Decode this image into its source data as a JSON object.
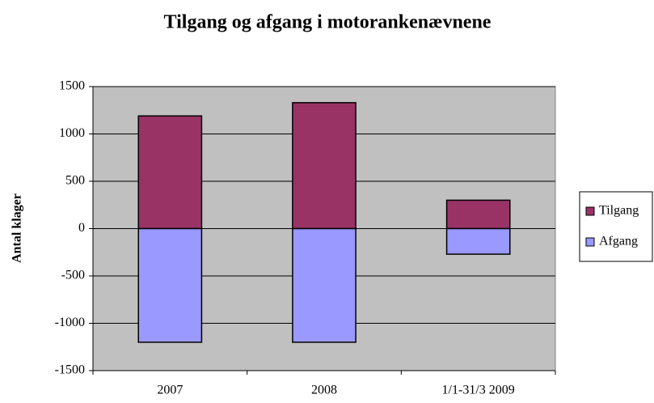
{
  "chart_data": {
    "type": "bar",
    "stacked": true,
    "title": "Tilgang og afgang i motorankenævnene",
    "y_label": "Antal klager",
    "categories": [
      "2007",
      "2008",
      "1/1-31/3 2009"
    ],
    "series": [
      {
        "name": "Tilgang",
        "color": "#993366",
        "values": [
          1190,
          1330,
          300
        ]
      },
      {
        "name": "Afgang",
        "color": "#9999ff",
        "values": [
          -1200,
          -1200,
          -270
        ]
      }
    ],
    "ylim": [
      -1500,
      1500
    ],
    "yticks": [
      -1500,
      -1000,
      -500,
      0,
      500,
      1000,
      1500
    ],
    "grid": true,
    "legend": "right"
  }
}
